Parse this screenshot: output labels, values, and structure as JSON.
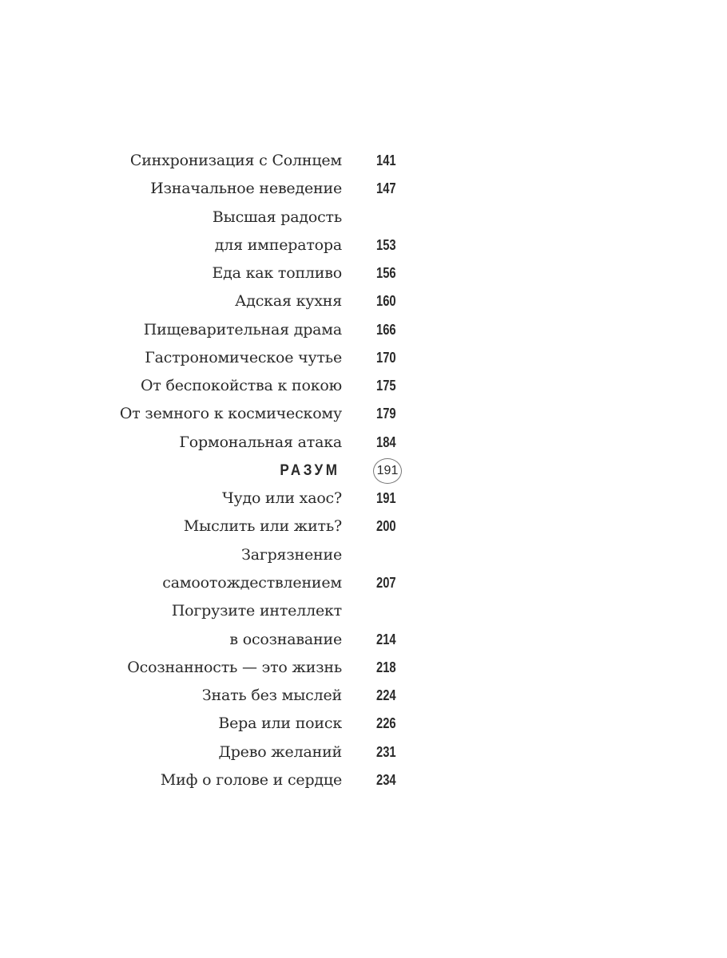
{
  "entries": [
    {
      "title": "Синхронизация с Солнцем",
      "page": "141"
    },
    {
      "title": "Изначальное неведение",
      "page": "147"
    },
    {
      "title": "Высшая радость",
      "page": ""
    },
    {
      "title": "для императора",
      "page": "153"
    },
    {
      "title": "Еда как топливо",
      "page": "156"
    },
    {
      "title": "Адская кухня",
      "page": "160"
    },
    {
      "title": "Пищеварительная драма",
      "page": "166"
    },
    {
      "title": "Гастрономическое чутье",
      "page": "170"
    },
    {
      "title": "От беспокойства к покою",
      "page": "175"
    },
    {
      "title": "От земного к космическому",
      "page": "179"
    },
    {
      "title": "Гормональная атака",
      "page": "184"
    },
    {
      "title": "РАЗУМ",
      "page": "191",
      "section": true
    },
    {
      "title": "Чудо или хаос?",
      "page": "191"
    },
    {
      "title": "Мыслить или жить?",
      "page": "200"
    },
    {
      "title": "Загрязнение",
      "page": ""
    },
    {
      "title": "самоотождествлением",
      "page": "207"
    },
    {
      "title": "Погрузите интеллект",
      "page": ""
    },
    {
      "title": "в осознавание",
      "page": "214"
    },
    {
      "title": "Осознанность — это жизнь",
      "page": "218"
    },
    {
      "title": "Знать без мыслей",
      "page": "224"
    },
    {
      "title": "Вера или поиск",
      "page": "226"
    },
    {
      "title": "Древо желаний",
      "page": "231"
    },
    {
      "title": "Миф о голове и сердце",
      "page": "234"
    }
  ]
}
